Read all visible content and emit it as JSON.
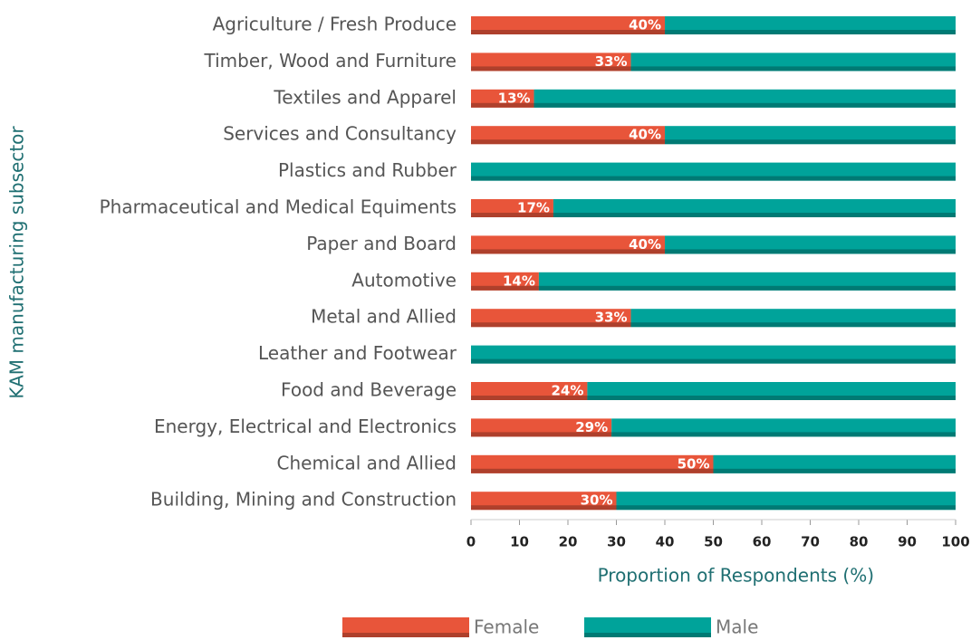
{
  "chart_data": {
    "type": "stacked_bar_horizontal",
    "xlabel": "Proportion of Respondents (%)",
    "ylabel": "KAM manufacturing subsector",
    "categories": [
      "Agriculture / Fresh Produce",
      "Timber, Wood and Furniture",
      "Textiles and Apparel",
      "Services and Consultancy",
      "Plastics and Rubber",
      "Pharmaceutical and Medical Equiments",
      "Paper and Board",
      "Automotive",
      "Metal and Allied",
      "Leather and  Footwear",
      "Food and Beverage",
      "Energy, Electrical and Electronics",
      "Chemical and Allied",
      "Building, Mining and Construction"
    ],
    "series": [
      {
        "name": "Female",
        "color": "#e8553a",
        "values": [
          40,
          33,
          13,
          40,
          0,
          17,
          40,
          14,
          33,
          0,
          24,
          29,
          50,
          30
        ],
        "value_labels": [
          "40%",
          "33%",
          "13%",
          "40%",
          null,
          "17%",
          "40%",
          "14%",
          "33%",
          null,
          "24%",
          "29%",
          "50%",
          "30%"
        ]
      },
      {
        "name": "Male",
        "color": "#00a39a",
        "values": [
          60,
          67,
          87,
          60,
          100,
          83,
          60,
          86,
          67,
          100,
          76,
          71,
          50,
          70
        ]
      }
    ],
    "xlim": [
      0,
      100
    ],
    "xticks": [
      0,
      10,
      20,
      30,
      40,
      50,
      60,
      70,
      80,
      90,
      100
    ],
    "legend": "bottom"
  }
}
